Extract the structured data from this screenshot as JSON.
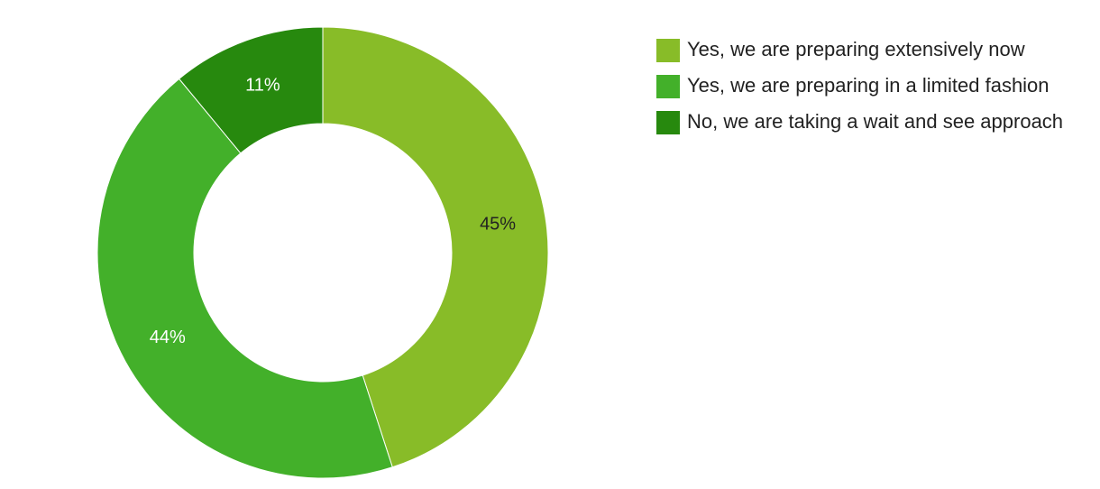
{
  "chart_data": {
    "type": "donut",
    "categories": [
      "Yes, we are preparing extensively now",
      "Yes, we are preparing in a limited fashion",
      "No, we are taking a wait and see approach"
    ],
    "values": [
      45,
      44,
      11
    ],
    "value_labels": [
      "45%",
      "44%",
      "11%"
    ],
    "colors": [
      "#88bc28",
      "#43b02a",
      "#27890e"
    ],
    "legend": "top-right"
  }
}
